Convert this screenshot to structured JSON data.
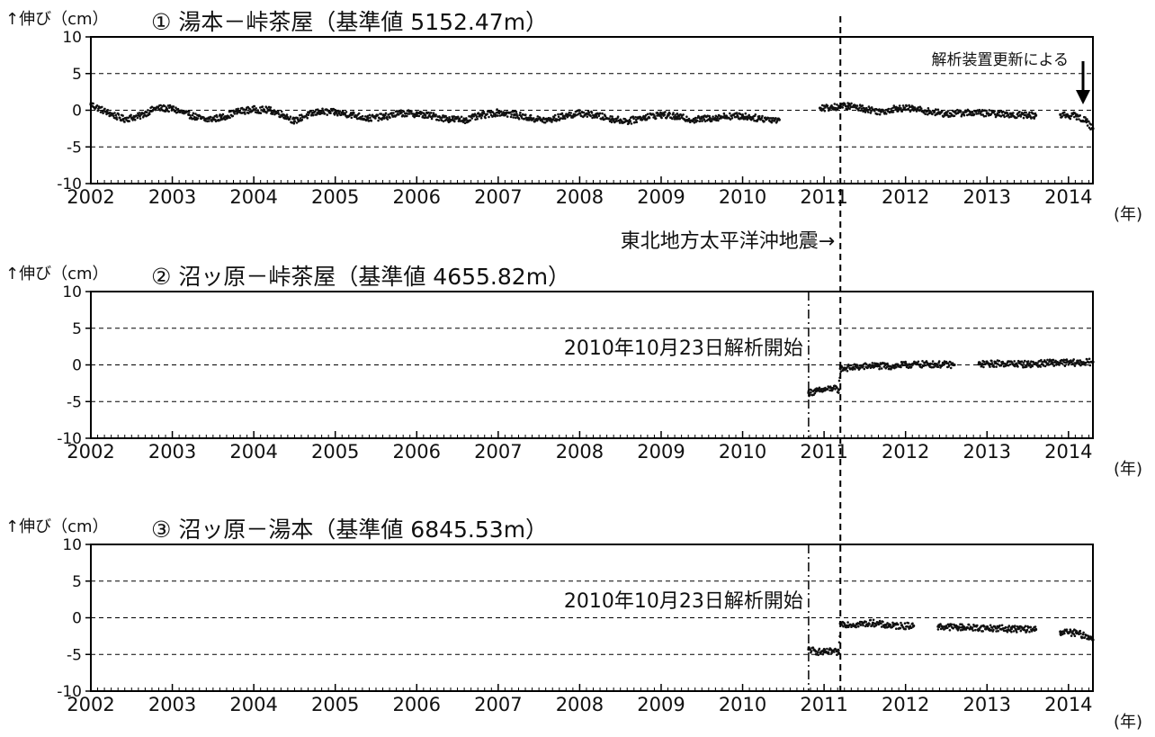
{
  "chart_data": [
    {
      "type": "scatter",
      "title": "① 湯本－峠茶屋（基準値 5152.47m）",
      "ylabel": "↑伸び（cm）",
      "xlabel": "(年)",
      "ylim": [
        -10,
        10
      ],
      "xlim": [
        2002,
        2014.3
      ],
      "yticks": [
        10,
        5,
        0,
        -5,
        -10
      ],
      "xticks": [
        "2002",
        "2003",
        "2004",
        "2005",
        "2006",
        "2007",
        "2008",
        "2009",
        "2010",
        "2011",
        "2012",
        "2013",
        "2014"
      ],
      "grid": "dashed at 5, 0, -5",
      "annotations": [
        "解析装置更新による",
        "東北地方太平洋沖地震→"
      ],
      "series": [
        {
          "points": [
            [
              2002.0,
              0.8
            ],
            [
              2002.2,
              -0.3
            ],
            [
              2002.4,
              -1.2
            ],
            [
              2002.6,
              -0.8
            ],
            [
              2002.8,
              0.3
            ],
            [
              2003.0,
              0.2
            ],
            [
              2003.2,
              -0.6
            ],
            [
              2003.4,
              -1.3
            ],
            [
              2003.6,
              -1.0
            ],
            [
              2003.8,
              -0.2
            ],
            [
              2004.0,
              0.1
            ],
            [
              2004.2,
              0.0
            ],
            [
              2004.4,
              -0.8
            ],
            [
              2004.5,
              -1.5
            ],
            [
              2004.6,
              -0.9
            ],
            [
              2004.8,
              -0.2
            ],
            [
              2005.0,
              -0.3
            ],
            [
              2005.2,
              -0.6
            ],
            [
              2005.4,
              -1.1
            ],
            [
              2005.6,
              -0.9
            ],
            [
              2005.8,
              -0.4
            ],
            [
              2006.0,
              -0.5
            ],
            [
              2006.2,
              -0.8
            ],
            [
              2006.4,
              -1.2
            ],
            [
              2006.6,
              -1.3
            ],
            [
              2006.8,
              -0.7
            ],
            [
              2007.0,
              -0.3
            ],
            [
              2007.2,
              -0.6
            ],
            [
              2007.4,
              -1.1
            ],
            [
              2007.6,
              -1.4
            ],
            [
              2007.8,
              -0.8
            ],
            [
              2008.0,
              -0.4
            ],
            [
              2008.2,
              -0.7
            ],
            [
              2008.4,
              -1.2
            ],
            [
              2008.6,
              -1.5
            ],
            [
              2008.8,
              -0.9
            ],
            [
              2009.0,
              -0.6
            ],
            [
              2009.2,
              -0.9
            ],
            [
              2009.4,
              -1.3
            ],
            [
              2009.6,
              -1.1
            ],
            [
              2009.8,
              -0.8
            ],
            [
              2010.0,
              -0.8
            ],
            [
              2010.2,
              -1.1
            ],
            [
              2010.45,
              -1.3
            ],
            [
              2010.95,
              0.3
            ],
            [
              2011.1,
              0.4
            ],
            [
              2011.3,
              0.6
            ],
            [
              2011.5,
              0.2
            ],
            [
              2011.7,
              -0.2
            ],
            [
              2011.9,
              0.3
            ],
            [
              2012.1,
              0.2
            ],
            [
              2012.3,
              -0.2
            ],
            [
              2012.5,
              -0.5
            ],
            [
              2012.8,
              -0.3
            ],
            [
              2013.0,
              -0.4
            ],
            [
              2013.3,
              -0.6
            ],
            [
              2013.6,
              -0.7
            ],
            [
              2013.9,
              -0.6
            ],
            [
              2014.1,
              -0.8
            ],
            [
              2014.22,
              -1.5
            ],
            [
              2014.3,
              -2.5
            ]
          ]
        }
      ]
    },
    {
      "type": "scatter",
      "title": "② 沼ッ原－峠茶屋（基準値 4655.82m）",
      "ylabel": "↑伸び（cm）",
      "xlabel": "(年)",
      "ylim": [
        -10,
        10
      ],
      "xlim": [
        2002,
        2014.3
      ],
      "yticks": [
        10,
        5,
        0,
        -5,
        -10
      ],
      "xticks": [
        "2002",
        "2003",
        "2004",
        "2005",
        "2006",
        "2007",
        "2008",
        "2009",
        "2010",
        "2011",
        "2012",
        "2013",
        "2014"
      ],
      "grid": "dashed at 5, 0, -5",
      "annotations": [
        "2010年10月23日解析開始"
      ],
      "series": [
        {
          "points": [
            [
              2010.81,
              -3.8
            ],
            [
              2010.9,
              -3.6
            ],
            [
              2011.0,
              -3.4
            ],
            [
              2011.1,
              -3.2
            ],
            [
              2011.18,
              -3.4
            ],
            [
              2011.2,
              -0.5
            ],
            [
              2011.4,
              -0.3
            ],
            [
              2011.6,
              -0.1
            ],
            [
              2011.8,
              -0.2
            ],
            [
              2012.0,
              0.0
            ],
            [
              2012.3,
              0.1
            ],
            [
              2012.6,
              0.0
            ],
            [
              2012.9,
              0.1
            ],
            [
              2013.2,
              0.2
            ],
            [
              2013.5,
              0.1
            ],
            [
              2013.8,
              0.3
            ],
            [
              2014.1,
              0.3
            ],
            [
              2014.3,
              0.4
            ]
          ]
        }
      ]
    },
    {
      "type": "scatter",
      "title": "③ 沼ッ原－湯本（基準値 6845.53m）",
      "ylabel": "↑伸び（cm）",
      "xlabel": "(年)",
      "ylim": [
        -10,
        10
      ],
      "xlim": [
        2002,
        2014.3
      ],
      "yticks": [
        10,
        5,
        0,
        -5,
        -10
      ],
      "xticks": [
        "2002",
        "2003",
        "2004",
        "2005",
        "2006",
        "2007",
        "2008",
        "2009",
        "2010",
        "2011",
        "2012",
        "2013",
        "2014"
      ],
      "grid": "dashed at 5, 0, -5",
      "annotations": [
        "2010年10月23日解析開始"
      ],
      "series": [
        {
          "points": [
            [
              2010.81,
              -4.3
            ],
            [
              2010.9,
              -4.6
            ],
            [
              2011.0,
              -4.7
            ],
            [
              2011.1,
              -4.6
            ],
            [
              2011.18,
              -4.8
            ],
            [
              2011.2,
              -0.8
            ],
            [
              2011.4,
              -0.9
            ],
            [
              2011.6,
              -0.7
            ],
            [
              2011.75,
              -1.0
            ],
            [
              2011.85,
              -1.1
            ],
            [
              2012.1,
              -1.1
            ],
            [
              2012.4,
              -1.2
            ],
            [
              2012.7,
              -1.3
            ],
            [
              2013.0,
              -1.4
            ],
            [
              2013.3,
              -1.5
            ],
            [
              2013.6,
              -1.6
            ],
            [
              2013.9,
              -1.9
            ],
            [
              2014.1,
              -2.1
            ],
            [
              2014.25,
              -2.6
            ],
            [
              2014.3,
              -3.0
            ]
          ]
        }
      ]
    }
  ]
}
